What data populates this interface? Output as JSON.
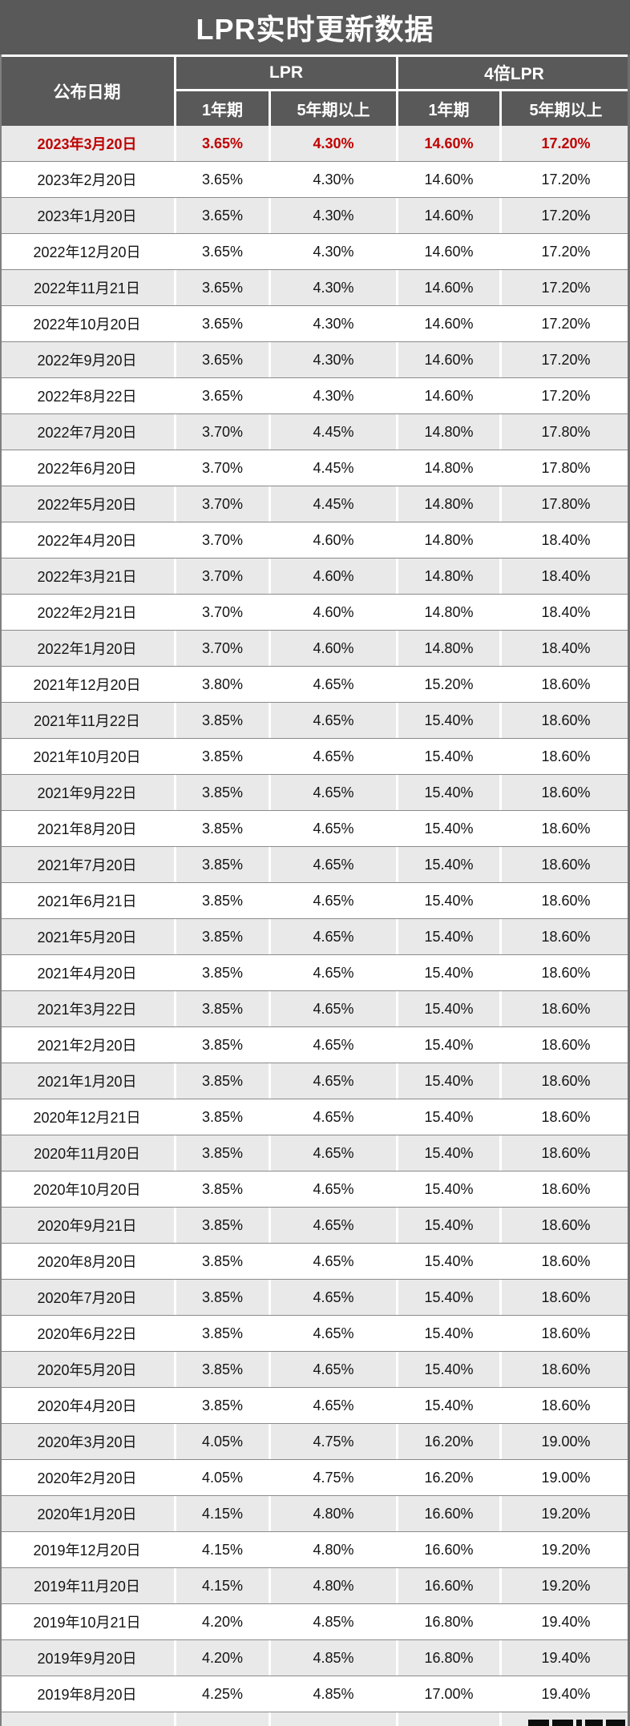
{
  "title": "LPR实时更新数据",
  "header": {
    "date_label": "公布日期",
    "group_labels": [
      "LPR",
      "4倍LPR"
    ],
    "sub_labels": [
      "1年期",
      "5年期以上",
      "1年期",
      "5年期以上"
    ]
  },
  "colors": {
    "header_bg": "#595959",
    "stripe_bg": "#e9e9e9",
    "row_bg": "#ffffff",
    "highlight_text": "#c00000",
    "header_text": "#ffffff",
    "body_text": "#141414",
    "row_border": "#8a8a8a"
  },
  "chart_data": {
    "type": "table",
    "title": "LPR实时更新数据",
    "columns": [
      "公布日期",
      "LPR 1年期",
      "LPR 5年期以上",
      "4倍LPR 1年期",
      "4倍LPR 5年期以上"
    ],
    "highlight_row_index": 0,
    "rows": [
      {
        "date": "2023年3月20日",
        "lpr_1y": "3.65%",
        "lpr_5y": "4.30%",
        "x4_1y": "14.60%",
        "x4_5y": "17.20%"
      },
      {
        "date": "2023年2月20日",
        "lpr_1y": "3.65%",
        "lpr_5y": "4.30%",
        "x4_1y": "14.60%",
        "x4_5y": "17.20%"
      },
      {
        "date": "2023年1月20日",
        "lpr_1y": "3.65%",
        "lpr_5y": "4.30%",
        "x4_1y": "14.60%",
        "x4_5y": "17.20%"
      },
      {
        "date": "2022年12月20日",
        "lpr_1y": "3.65%",
        "lpr_5y": "4.30%",
        "x4_1y": "14.60%",
        "x4_5y": "17.20%"
      },
      {
        "date": "2022年11月21日",
        "lpr_1y": "3.65%",
        "lpr_5y": "4.30%",
        "x4_1y": "14.60%",
        "x4_5y": "17.20%"
      },
      {
        "date": "2022年10月20日",
        "lpr_1y": "3.65%",
        "lpr_5y": "4.30%",
        "x4_1y": "14.60%",
        "x4_5y": "17.20%"
      },
      {
        "date": "2022年9月20日",
        "lpr_1y": "3.65%",
        "lpr_5y": "4.30%",
        "x4_1y": "14.60%",
        "x4_5y": "17.20%"
      },
      {
        "date": "2022年8月22日",
        "lpr_1y": "3.65%",
        "lpr_5y": "4.30%",
        "x4_1y": "14.60%",
        "x4_5y": "17.20%"
      },
      {
        "date": "2022年7月20日",
        "lpr_1y": "3.70%",
        "lpr_5y": "4.45%",
        "x4_1y": "14.80%",
        "x4_5y": "17.80%"
      },
      {
        "date": "2022年6月20日",
        "lpr_1y": "3.70%",
        "lpr_5y": "4.45%",
        "x4_1y": "14.80%",
        "x4_5y": "17.80%"
      },
      {
        "date": "2022年5月20日",
        "lpr_1y": "3.70%",
        "lpr_5y": "4.45%",
        "x4_1y": "14.80%",
        "x4_5y": "17.80%"
      },
      {
        "date": "2022年4月20日",
        "lpr_1y": "3.70%",
        "lpr_5y": "4.60%",
        "x4_1y": "14.80%",
        "x4_5y": "18.40%"
      },
      {
        "date": "2022年3月21日",
        "lpr_1y": "3.70%",
        "lpr_5y": "4.60%",
        "x4_1y": "14.80%",
        "x4_5y": "18.40%"
      },
      {
        "date": "2022年2月21日",
        "lpr_1y": "3.70%",
        "lpr_5y": "4.60%",
        "x4_1y": "14.80%",
        "x4_5y": "18.40%"
      },
      {
        "date": "2022年1月20日",
        "lpr_1y": "3.70%",
        "lpr_5y": "4.60%",
        "x4_1y": "14.80%",
        "x4_5y": "18.40%"
      },
      {
        "date": "2021年12月20日",
        "lpr_1y": "3.80%",
        "lpr_5y": "4.65%",
        "x4_1y": "15.20%",
        "x4_5y": "18.60%"
      },
      {
        "date": "2021年11月22日",
        "lpr_1y": "3.85%",
        "lpr_5y": "4.65%",
        "x4_1y": "15.40%",
        "x4_5y": "18.60%"
      },
      {
        "date": "2021年10月20日",
        "lpr_1y": "3.85%",
        "lpr_5y": "4.65%",
        "x4_1y": "15.40%",
        "x4_5y": "18.60%"
      },
      {
        "date": "2021年9月22日",
        "lpr_1y": "3.85%",
        "lpr_5y": "4.65%",
        "x4_1y": "15.40%",
        "x4_5y": "18.60%"
      },
      {
        "date": "2021年8月20日",
        "lpr_1y": "3.85%",
        "lpr_5y": "4.65%",
        "x4_1y": "15.40%",
        "x4_5y": "18.60%"
      },
      {
        "date": "2021年7月20日",
        "lpr_1y": "3.85%",
        "lpr_5y": "4.65%",
        "x4_1y": "15.40%",
        "x4_5y": "18.60%"
      },
      {
        "date": "2021年6月21日",
        "lpr_1y": "3.85%",
        "lpr_5y": "4.65%",
        "x4_1y": "15.40%",
        "x4_5y": "18.60%"
      },
      {
        "date": "2021年5月20日",
        "lpr_1y": "3.85%",
        "lpr_5y": "4.65%",
        "x4_1y": "15.40%",
        "x4_5y": "18.60%"
      },
      {
        "date": "2021年4月20日",
        "lpr_1y": "3.85%",
        "lpr_5y": "4.65%",
        "x4_1y": "15.40%",
        "x4_5y": "18.60%"
      },
      {
        "date": "2021年3月22日",
        "lpr_1y": "3.85%",
        "lpr_5y": "4.65%",
        "x4_1y": "15.40%",
        "x4_5y": "18.60%"
      },
      {
        "date": "2021年2月20日",
        "lpr_1y": "3.85%",
        "lpr_5y": "4.65%",
        "x4_1y": "15.40%",
        "x4_5y": "18.60%"
      },
      {
        "date": "2021年1月20日",
        "lpr_1y": "3.85%",
        "lpr_5y": "4.65%",
        "x4_1y": "15.40%",
        "x4_5y": "18.60%"
      },
      {
        "date": "2020年12月21日",
        "lpr_1y": "3.85%",
        "lpr_5y": "4.65%",
        "x4_1y": "15.40%",
        "x4_5y": "18.60%"
      },
      {
        "date": "2020年11月20日",
        "lpr_1y": "3.85%",
        "lpr_5y": "4.65%",
        "x4_1y": "15.40%",
        "x4_5y": "18.60%"
      },
      {
        "date": "2020年10月20日",
        "lpr_1y": "3.85%",
        "lpr_5y": "4.65%",
        "x4_1y": "15.40%",
        "x4_5y": "18.60%"
      },
      {
        "date": "2020年9月21日",
        "lpr_1y": "3.85%",
        "lpr_5y": "4.65%",
        "x4_1y": "15.40%",
        "x4_5y": "18.60%"
      },
      {
        "date": "2020年8月20日",
        "lpr_1y": "3.85%",
        "lpr_5y": "4.65%",
        "x4_1y": "15.40%",
        "x4_5y": "18.60%"
      },
      {
        "date": "2020年7月20日",
        "lpr_1y": "3.85%",
        "lpr_5y": "4.65%",
        "x4_1y": "15.40%",
        "x4_5y": "18.60%"
      },
      {
        "date": "2020年6月22日",
        "lpr_1y": "3.85%",
        "lpr_5y": "4.65%",
        "x4_1y": "15.40%",
        "x4_5y": "18.60%"
      },
      {
        "date": "2020年5月20日",
        "lpr_1y": "3.85%",
        "lpr_5y": "4.65%",
        "x4_1y": "15.40%",
        "x4_5y": "18.60%"
      },
      {
        "date": "2020年4月20日",
        "lpr_1y": "3.85%",
        "lpr_5y": "4.65%",
        "x4_1y": "15.40%",
        "x4_5y": "18.60%"
      },
      {
        "date": "2020年3月20日",
        "lpr_1y": "4.05%",
        "lpr_5y": "4.75%",
        "x4_1y": "16.20%",
        "x4_5y": "19.00%"
      },
      {
        "date": "2020年2月20日",
        "lpr_1y": "4.05%",
        "lpr_5y": "4.75%",
        "x4_1y": "16.20%",
        "x4_5y": "19.00%"
      },
      {
        "date": "2020年1月20日",
        "lpr_1y": "4.15%",
        "lpr_5y": "4.80%",
        "x4_1y": "16.60%",
        "x4_5y": "19.20%"
      },
      {
        "date": "2019年12月20日",
        "lpr_1y": "4.15%",
        "lpr_5y": "4.80%",
        "x4_1y": "16.60%",
        "x4_5y": "19.20%"
      },
      {
        "date": "2019年11月20日",
        "lpr_1y": "4.15%",
        "lpr_5y": "4.80%",
        "x4_1y": "16.60%",
        "x4_5y": "19.20%"
      },
      {
        "date": "2019年10月21日",
        "lpr_1y": "4.20%",
        "lpr_5y": "4.85%",
        "x4_1y": "16.80%",
        "x4_5y": "19.40%"
      },
      {
        "date": "2019年9月20日",
        "lpr_1y": "4.20%",
        "lpr_5y": "4.85%",
        "x4_1y": "16.80%",
        "x4_5y": "19.40%"
      },
      {
        "date": "2019年8月20日",
        "lpr_1y": "4.25%",
        "lpr_5y": "4.85%",
        "x4_1y": "17.00%",
        "x4_5y": "19.40%"
      }
    ]
  }
}
